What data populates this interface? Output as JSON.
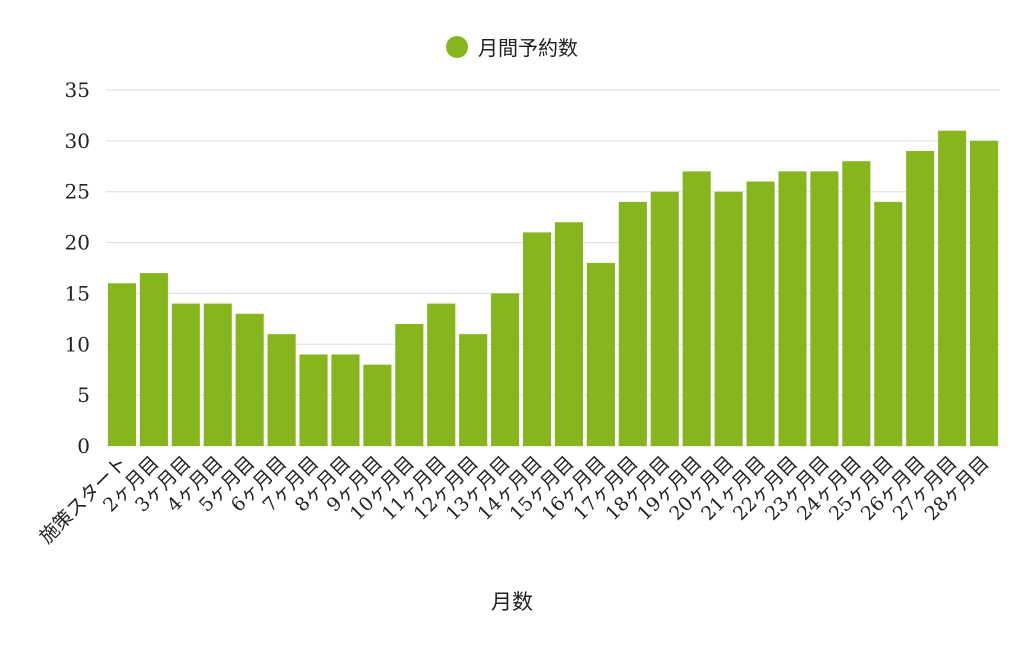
{
  "chart_data": {
    "type": "bar",
    "title": "",
    "xlabel": "月数",
    "ylabel": "",
    "ylim": [
      0,
      35
    ],
    "yticks": [
      0,
      5,
      10,
      15,
      20,
      25,
      30,
      35
    ],
    "grid": true,
    "legend_position": "top-center",
    "categories": [
      "施策スタート",
      "2ヶ月目",
      "3ヶ月目",
      "4ヶ月目",
      "5ヶ月目",
      "6ヶ月目",
      "7ヶ月目",
      "8ヶ月目",
      "9ヶ月目",
      "10ヶ月目",
      "11ヶ月目",
      "12ヶ月目",
      "13ヶ月目",
      "14ヶ月目",
      "15ヶ月目",
      "16ヶ月目",
      "17ヶ月目",
      "18ヶ月目",
      "19ヶ月目",
      "20ヶ月目",
      "21ヶ月目",
      "22ヶ月目",
      "23ヶ月目",
      "24ヶ月目",
      "25ヶ月目",
      "26ヶ月目",
      "27ヶ月目",
      "28ヶ月目"
    ],
    "series": [
      {
        "name": "月間予約数",
        "color": "#86b51e",
        "values": [
          16,
          17,
          14,
          14,
          13,
          11,
          9,
          9,
          8,
          12,
          14,
          11,
          15,
          21,
          22,
          18,
          24,
          25,
          27,
          25,
          26,
          27,
          27,
          28,
          24,
          29,
          31,
          30
        ]
      }
    ]
  }
}
